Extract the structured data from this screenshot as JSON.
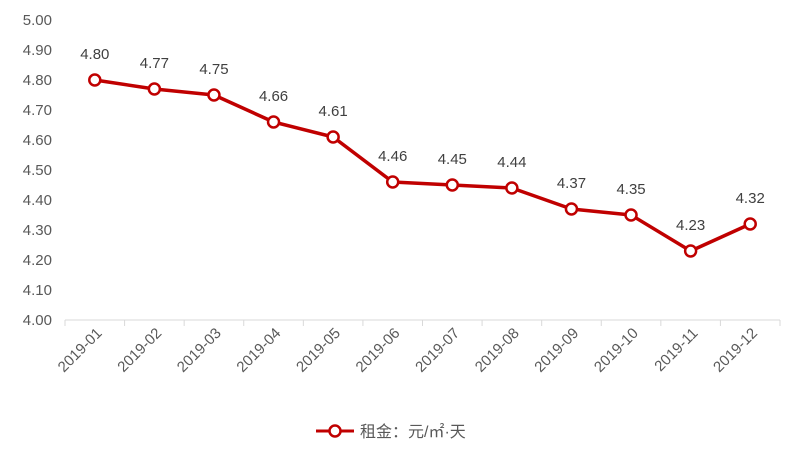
{
  "chart_data": {
    "type": "line",
    "categories": [
      "2019-01",
      "2019-02",
      "2019-03",
      "2019-04",
      "2019-05",
      "2019-06",
      "2019-07",
      "2019-08",
      "2019-09",
      "2019-10",
      "2019-11",
      "2019-12"
    ],
    "series": [
      {
        "name": "租金：元/㎡·天",
        "values": [
          4.8,
          4.77,
          4.75,
          4.66,
          4.61,
          4.46,
          4.45,
          4.44,
          4.37,
          4.35,
          4.23,
          4.32
        ],
        "labels": [
          "4.80",
          "4.77",
          "4.75",
          "4.66",
          "4.61",
          "4.46",
          "4.45",
          "4.44",
          "4.37",
          "4.35",
          "4.23",
          "4.32"
        ]
      }
    ],
    "ylim": [
      4.0,
      5.0
    ],
    "y_ticks": [
      "4.00",
      "4.10",
      "4.20",
      "4.30",
      "4.40",
      "4.50",
      "4.60",
      "4.70",
      "4.80",
      "4.90",
      "5.00"
    ],
    "grid": false,
    "legend_position": "bottom",
    "colors": {
      "line": "#c00000",
      "marker_fill": "#ffffff",
      "axis": "#d9d9d9",
      "text": "#595959"
    }
  }
}
